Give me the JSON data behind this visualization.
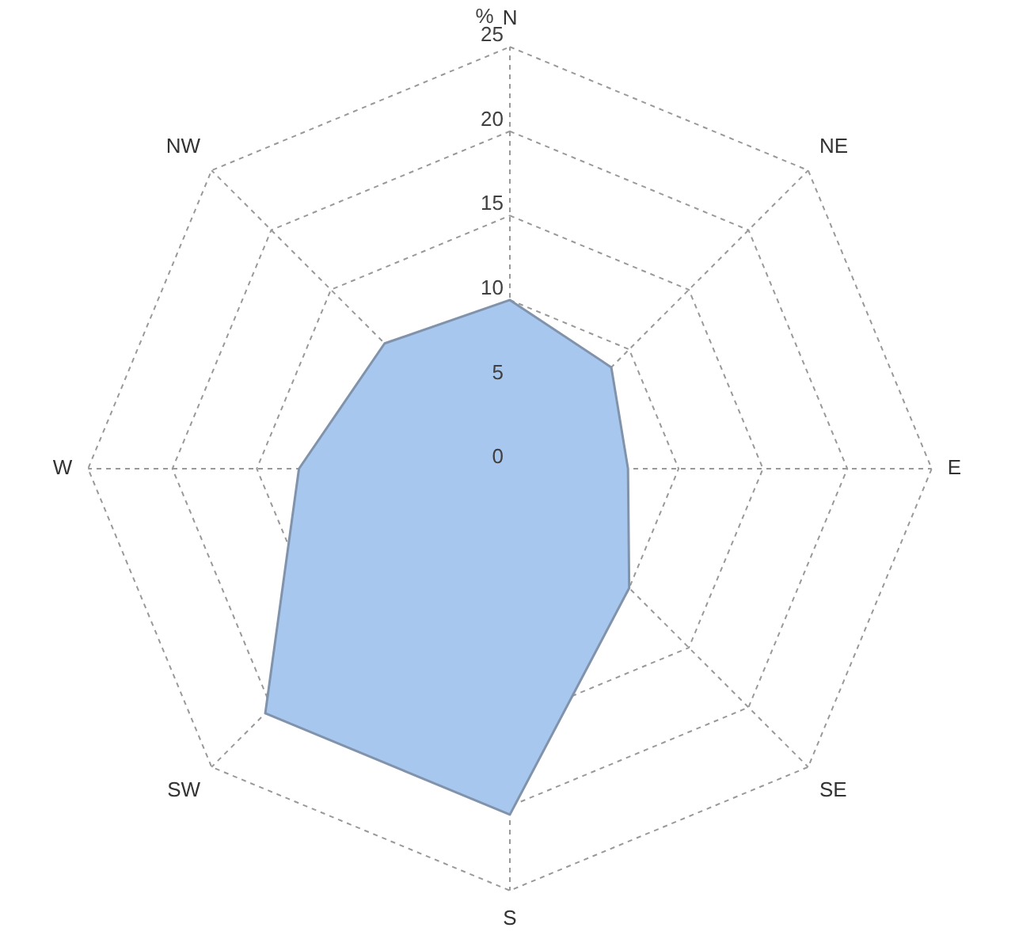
{
  "chart_data": {
    "type": "radar",
    "ylabel": "%",
    "categories": [
      "N",
      "NE",
      "E",
      "SE",
      "S",
      "SW",
      "W",
      "NW"
    ],
    "series": [
      {
        "color": "#a7c7ee",
        "values": [
          10,
          8.5,
          7,
          10,
          20.5,
          20.5,
          12.5,
          10.5
        ]
      }
    ],
    "ylim": [
      0,
      25
    ],
    "yticks": [
      0,
      5,
      10,
      15,
      20,
      25
    ],
    "grid": true,
    "legend": false,
    "marker": "none",
    "line_style": "solid"
  }
}
